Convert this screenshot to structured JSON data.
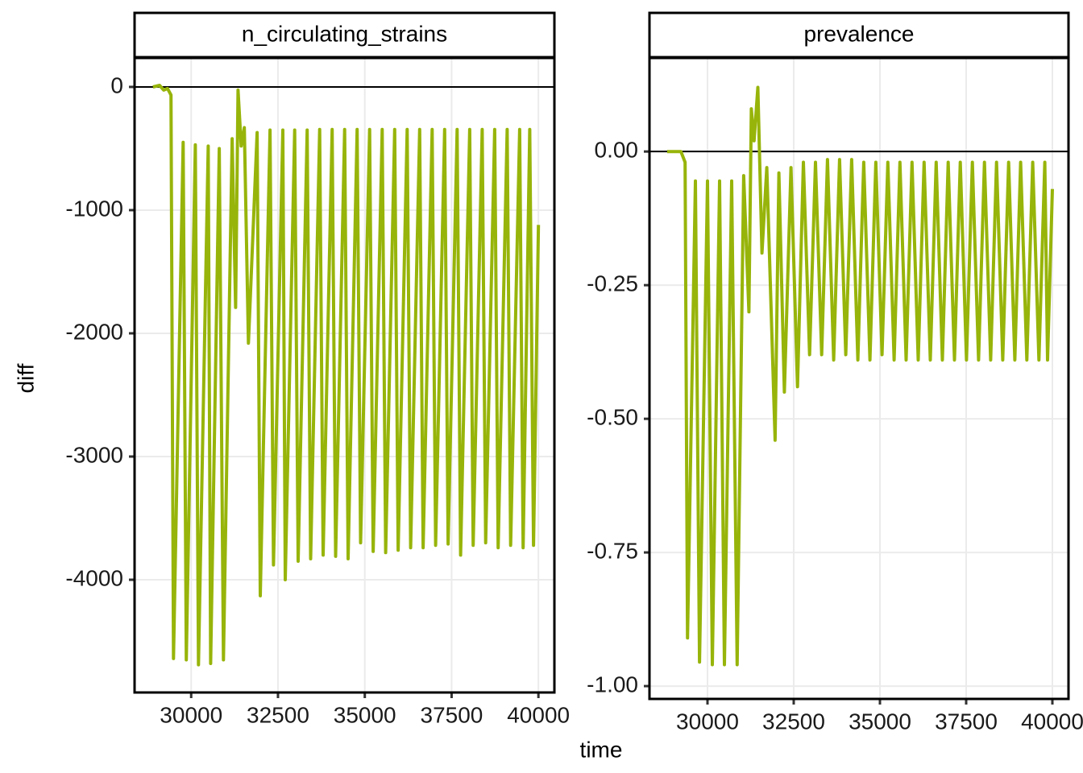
{
  "chart_data": [
    {
      "type": "line",
      "title": "n_circulating_strains",
      "xlabel": "time",
      "ylabel": "diff",
      "color": "#97b40a",
      "grid": true,
      "hline": 0,
      "xlim": [
        28370,
        40460
      ],
      "ylim": [
        -4915,
        235
      ],
      "xticks": [
        30000,
        32500,
        35000,
        37500,
        40000
      ],
      "yticks": [
        0,
        -1000,
        -2000,
        -3000,
        -4000
      ],
      "x": [
        28900,
        29090,
        29210,
        29320,
        29420,
        29490,
        29770,
        29860,
        30120,
        30210,
        30490,
        30560,
        30810,
        30930,
        31180,
        31280,
        31350,
        31440,
        31530,
        31650,
        31900,
        31990,
        32270,
        32370,
        32640,
        32710,
        32980,
        33080,
        33340,
        33440,
        33700,
        33800,
        34060,
        34160,
        34420,
        34520,
        34780,
        34880,
        35140,
        35240,
        35500,
        35600,
        35860,
        35960,
        36220,
        36320,
        36580,
        36680,
        36940,
        37040,
        37300,
        37400,
        37660,
        37760,
        38020,
        38120,
        38380,
        38480,
        38740,
        38840,
        39100,
        39200,
        39460,
        39560,
        39750,
        39860,
        40000
      ],
      "values": [
        0,
        13,
        -26,
        -13,
        -65,
        -4640,
        -450,
        -4650,
        -470,
        -4690,
        -480,
        -4680,
        -500,
        -4650,
        -420,
        -1790,
        -25,
        -480,
        -330,
        -2080,
        -370,
        -4130,
        -350,
        -3880,
        -350,
        -4000,
        -350,
        -3850,
        -350,
        -3830,
        -345,
        -3800,
        -345,
        -3810,
        -345,
        -3830,
        -345,
        -3700,
        -345,
        -3770,
        -345,
        -3780,
        -345,
        -3760,
        -345,
        -3740,
        -345,
        -3740,
        -345,
        -3720,
        -345,
        -3710,
        -345,
        -3800,
        -345,
        -3720,
        -345,
        -3700,
        -345,
        -3740,
        -345,
        -3720,
        -345,
        -3740,
        -345,
        -3720,
        -1120
      ]
    },
    {
      "type": "line",
      "title": "prevalence",
      "color": "#97b40a",
      "grid": true,
      "hline": 0,
      "xlim": [
        28318,
        40467
      ],
      "ylim": [
        -1.024,
        0.175
      ],
      "xticks": [
        30000,
        32500,
        35000,
        37500,
        40000
      ],
      "yticks": [
        {
          "value": 0,
          "label": "0.00"
        },
        {
          "value": -0.25,
          "label": "-0.25"
        },
        {
          "value": -0.5,
          "label": "-0.50"
        },
        {
          "value": -0.75,
          "label": "-0.75"
        },
        {
          "value": -1,
          "label": "-1.00"
        }
      ],
      "x": [
        28830,
        29230,
        29350,
        29420,
        29650,
        29770,
        30000,
        30140,
        30350,
        30490,
        30700,
        30860,
        31050,
        31200,
        31270,
        31350,
        31460,
        31580,
        31720,
        31960,
        32070,
        32230,
        32420,
        32610,
        32780,
        32960,
        33130,
        33310,
        33480,
        33660,
        33830,
        34010,
        34180,
        34360,
        34530,
        34710,
        34880,
        35060,
        35230,
        35410,
        35580,
        35760,
        35930,
        36110,
        36280,
        36460,
        36630,
        36810,
        36980,
        37160,
        37330,
        37510,
        37680,
        37860,
        38030,
        38210,
        38380,
        38560,
        38730,
        38910,
        39080,
        39260,
        39430,
        39610,
        39780,
        39860,
        40000
      ],
      "values": [
        0,
        0,
        -0.02,
        -0.91,
        -0.055,
        -0.955,
        -0.055,
        -0.96,
        -0.055,
        -0.96,
        -0.055,
        -0.96,
        -0.045,
        -0.3,
        0.08,
        0.02,
        0.12,
        -0.19,
        -0.03,
        -0.54,
        -0.04,
        -0.45,
        -0.03,
        -0.44,
        -0.02,
        -0.38,
        -0.02,
        -0.38,
        -0.015,
        -0.39,
        -0.015,
        -0.38,
        -0.015,
        -0.39,
        -0.02,
        -0.39,
        -0.02,
        -0.38,
        -0.02,
        -0.39,
        -0.02,
        -0.39,
        -0.02,
        -0.39,
        -0.02,
        -0.39,
        -0.02,
        -0.39,
        -0.02,
        -0.39,
        -0.02,
        -0.39,
        -0.02,
        -0.39,
        -0.02,
        -0.39,
        -0.02,
        -0.39,
        -0.02,
        -0.39,
        -0.02,
        -0.39,
        -0.02,
        -0.39,
        -0.02,
        -0.39,
        -0.07
      ]
    }
  ]
}
